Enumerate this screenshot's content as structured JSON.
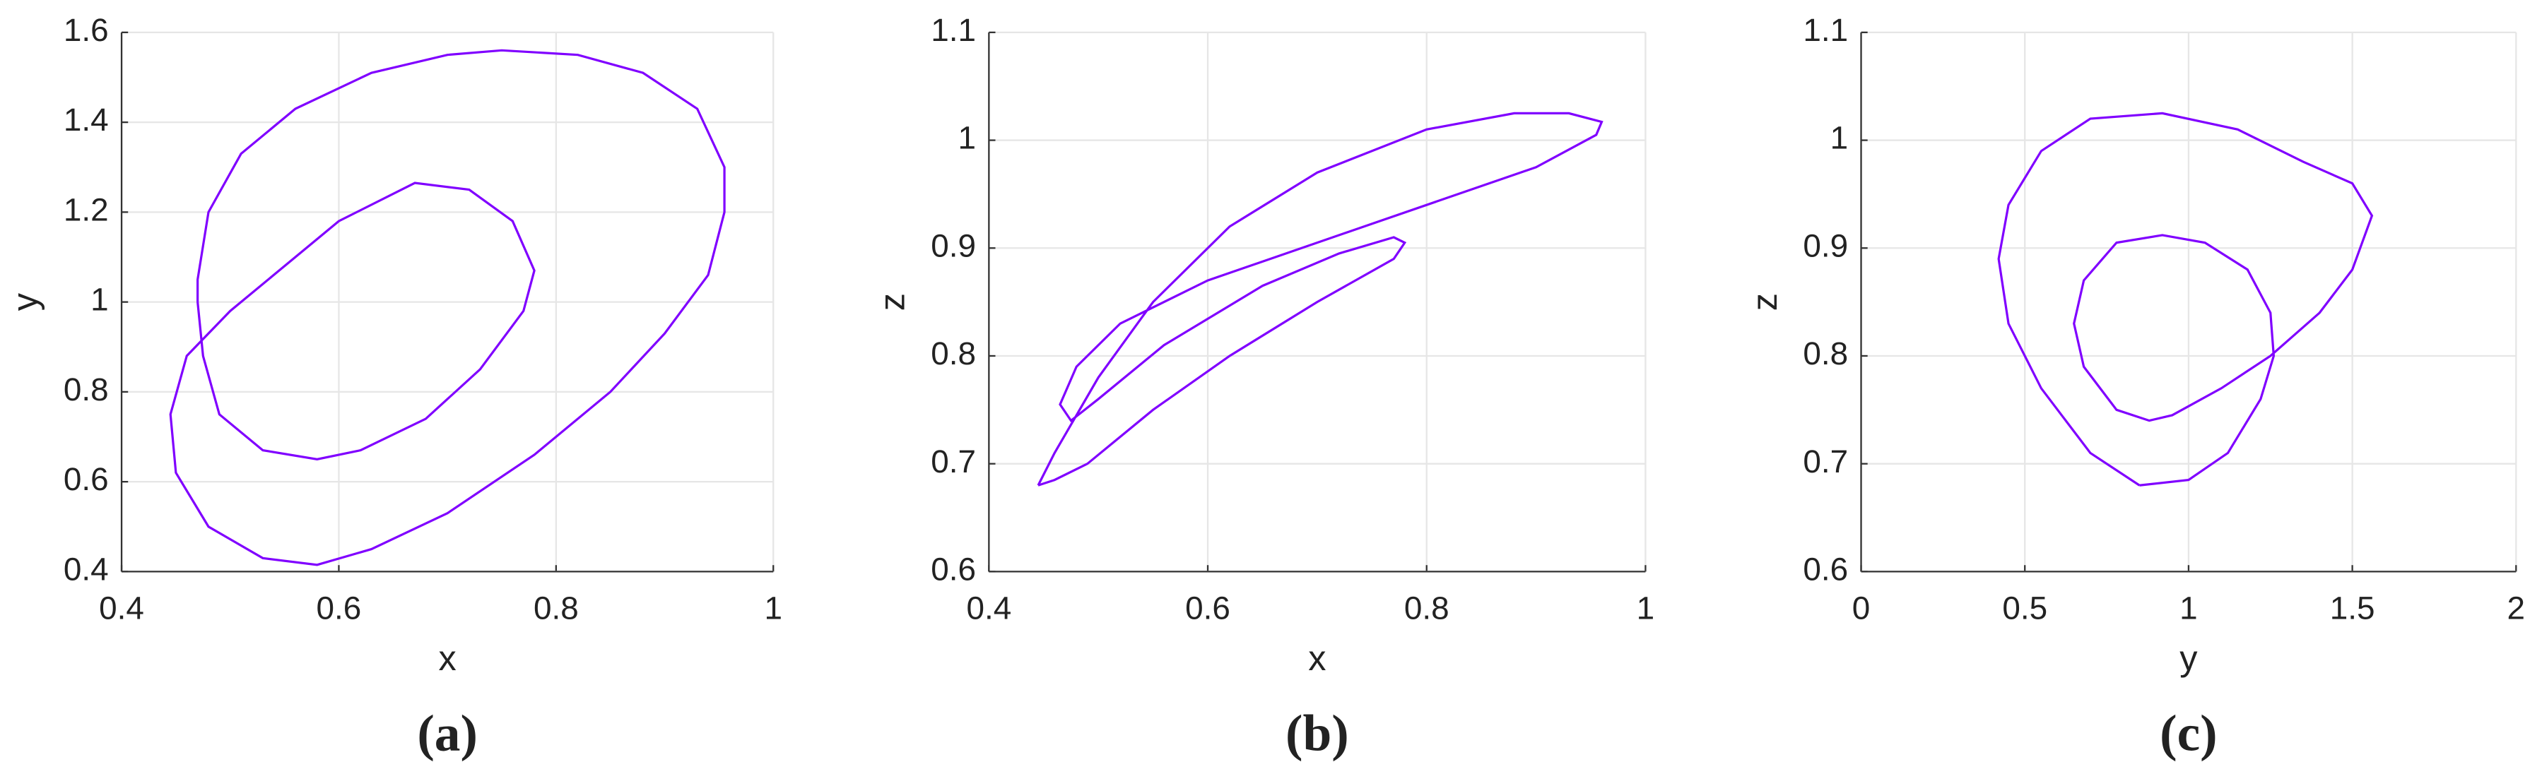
{
  "chart_data": [
    {
      "type": "line",
      "xlabel": "x",
      "ylabel": "y",
      "caption": "(a)",
      "color": "#8000ff",
      "grid": true,
      "xlim": [
        0.4,
        1
      ],
      "ylim": [
        0.4,
        1.6
      ],
      "xticks": [
        0.4,
        0.6,
        0.8,
        1
      ],
      "yticks": [
        0.4,
        0.6,
        0.8,
        1,
        1.2,
        1.4,
        1.6
      ],
      "x": [
        0.47,
        0.47,
        0.48,
        0.51,
        0.56,
        0.63,
        0.7,
        0.75,
        0.82,
        0.88,
        0.93,
        0.955,
        0.955,
        0.94,
        0.9,
        0.85,
        0.78,
        0.7,
        0.63,
        0.58,
        0.53,
        0.48,
        0.45,
        0.445,
        0.46,
        0.5,
        0.55,
        0.6,
        0.67,
        0.72,
        0.76,
        0.78,
        0.77,
        0.73,
        0.68,
        0.62,
        0.58,
        0.53,
        0.49,
        0.475,
        0.47
      ],
      "values": [
        1.0,
        1.05,
        1.2,
        1.33,
        1.43,
        1.51,
        1.55,
        1.56,
        1.55,
        1.51,
        1.43,
        1.3,
        1.2,
        1.06,
        0.93,
        0.8,
        0.66,
        0.53,
        0.45,
        0.415,
        0.43,
        0.5,
        0.62,
        0.75,
        0.88,
        0.98,
        1.08,
        1.18,
        1.265,
        1.25,
        1.18,
        1.07,
        0.98,
        0.85,
        0.74,
        0.67,
        0.65,
        0.67,
        0.75,
        0.88,
        1.0
      ]
    },
    {
      "type": "line",
      "xlabel": "x",
      "ylabel": "z",
      "caption": "(b)",
      "color": "#8000ff",
      "grid": true,
      "xlim": [
        0.4,
        1
      ],
      "ylim": [
        0.6,
        1.1
      ],
      "xticks": [
        0.4,
        0.6,
        0.8,
        1
      ],
      "yticks": [
        0.6,
        0.7,
        0.8,
        0.9,
        1,
        1.1
      ],
      "x": [
        0.445,
        0.46,
        0.5,
        0.55,
        0.62,
        0.7,
        0.8,
        0.88,
        0.93,
        0.96,
        0.955,
        0.9,
        0.8,
        0.7,
        0.6,
        0.52,
        0.48,
        0.465,
        0.475,
        0.5,
        0.56,
        0.65,
        0.72,
        0.77,
        0.78,
        0.77,
        0.7,
        0.62,
        0.55,
        0.49,
        0.46,
        0.445
      ],
      "values": [
        0.68,
        0.71,
        0.78,
        0.85,
        0.92,
        0.97,
        1.01,
        1.025,
        1.025,
        1.017,
        1.005,
        0.975,
        0.94,
        0.905,
        0.87,
        0.83,
        0.79,
        0.755,
        0.74,
        0.76,
        0.81,
        0.865,
        0.895,
        0.91,
        0.905,
        0.89,
        0.85,
        0.8,
        0.75,
        0.7,
        0.685,
        0.68
      ]
    },
    {
      "type": "line",
      "xlabel": "y",
      "ylabel": "z",
      "caption": "(c)",
      "color": "#8000ff",
      "grid": true,
      "xlim": [
        0,
        2
      ],
      "ylim": [
        0.6,
        1.1
      ],
      "xticks": [
        0,
        0.5,
        1,
        1.5,
        2
      ],
      "yticks": [
        0.6,
        0.7,
        0.8,
        0.9,
        1,
        1.1
      ],
      "x": [
        0.85,
        0.7,
        0.55,
        0.45,
        0.42,
        0.45,
        0.55,
        0.7,
        0.92,
        1.15,
        1.35,
        1.5,
        1.56,
        1.5,
        1.4,
        1.25,
        1.1,
        0.95,
        0.88,
        0.78,
        0.68,
        0.65,
        0.68,
        0.78,
        0.92,
        1.05,
        1.18,
        1.25,
        1.26,
        1.22,
        1.12,
        1.0,
        0.85
      ],
      "values": [
        0.68,
        0.71,
        0.77,
        0.83,
        0.89,
        0.94,
        0.99,
        1.02,
        1.025,
        1.01,
        0.98,
        0.96,
        0.93,
        0.88,
        0.84,
        0.8,
        0.77,
        0.745,
        0.74,
        0.75,
        0.79,
        0.83,
        0.87,
        0.905,
        0.912,
        0.905,
        0.88,
        0.84,
        0.8,
        0.76,
        0.71,
        0.685,
        0.68
      ]
    }
  ]
}
